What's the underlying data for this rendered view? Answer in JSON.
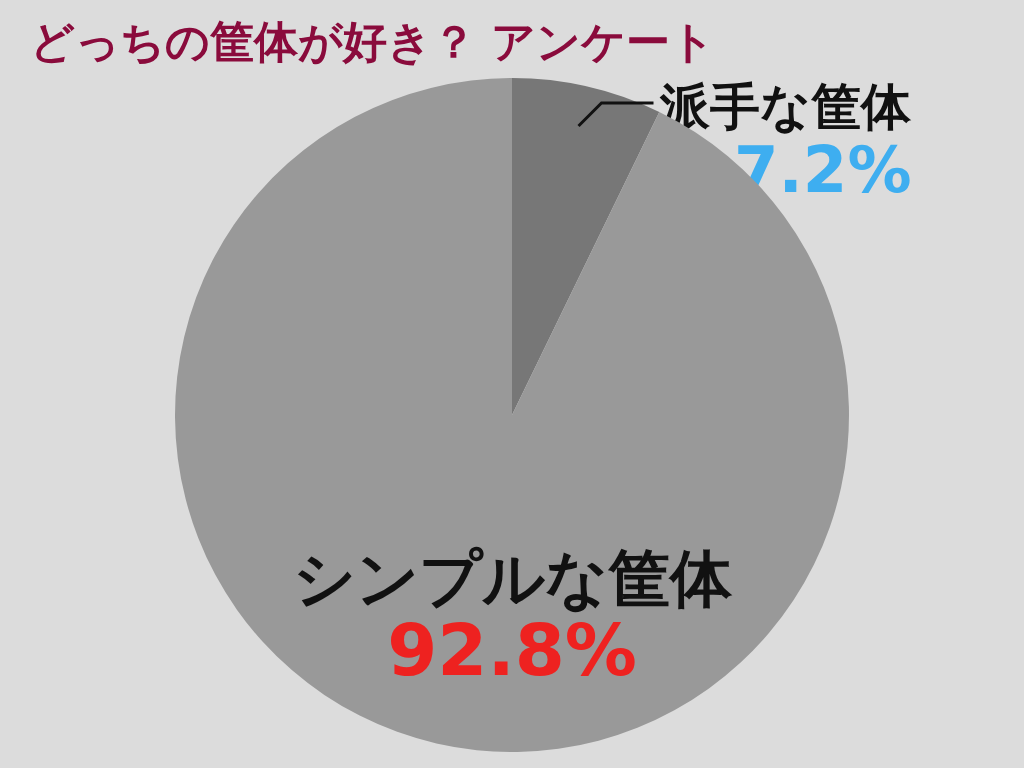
{
  "chart_data": {
    "type": "pie",
    "title": "どっちの筐体が好き？ アンケート",
    "categories": [
      "派手な筐体",
      "シンプルな筐体"
    ],
    "values": [
      7.2,
      92.8
    ],
    "colors": [
      "#777777",
      "#999999"
    ],
    "value_labels": [
      "7.2%",
      "92.8%"
    ]
  }
}
